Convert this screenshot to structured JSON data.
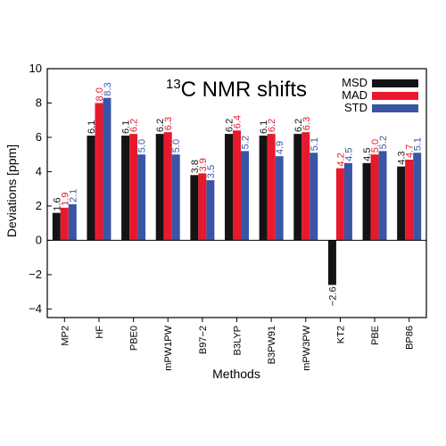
{
  "chart_data": {
    "type": "bar",
    "title_base": "C NMR shifts",
    "title_sup": "13",
    "xlabel": "Methods",
    "ylabel": "Deviations [ppm]",
    "ylim": [
      -4.5,
      10
    ],
    "yticks": [
      -4,
      -2,
      0,
      2,
      4,
      6,
      8,
      10
    ],
    "categories": [
      "MP2",
      "HF",
      "PBE0",
      "mPW1PW",
      "B97−2",
      "B3LYP",
      "B3PW91",
      "mPW3PW",
      "KT2",
      "PBE",
      "BP86"
    ],
    "series": [
      {
        "name": "MSD",
        "color": "#141414",
        "values": [
          1.6,
          6.1,
          6.1,
          6.2,
          3.8,
          6.2,
          6.1,
          6.2,
          -2.6,
          4.5,
          4.3
        ],
        "labels": [
          "1.6",
          "6.1",
          "6.1",
          "6.2",
          "3.8",
          "6.2",
          "6.1",
          "6.2",
          "−2.6",
          "4.5",
          "4.3"
        ]
      },
      {
        "name": "MAD",
        "color": "#e8192c",
        "values": [
          1.9,
          8.0,
          6.2,
          6.3,
          3.9,
          6.4,
          6.2,
          6.3,
          4.2,
          5.0,
          4.7
        ],
        "labels": [
          "1.9",
          "8.0",
          "6.2",
          "6.3",
          "3.9",
          "6.4",
          "6.2",
          "6.3",
          "4.2",
          "5.0",
          "4.7"
        ]
      },
      {
        "name": "STD",
        "color": "#3a55a6",
        "values": [
          2.1,
          8.3,
          5.0,
          5.0,
          3.5,
          5.2,
          4.9,
          5.1,
          4.5,
          5.2,
          5.1
        ],
        "labels": [
          "2.1",
          "8.3",
          "5.0",
          "5.0",
          "3.5",
          "5.2",
          "4.9",
          "5.1",
          "4.5",
          "5.2",
          "5.1"
        ]
      }
    ],
    "legend_position": "top-right",
    "grid": false
  }
}
